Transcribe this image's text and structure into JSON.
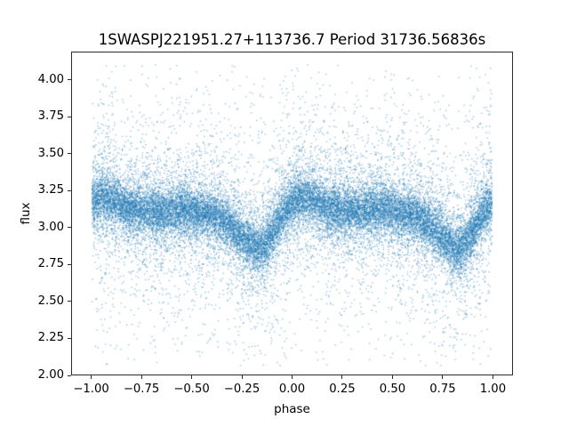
{
  "chart_data": {
    "type": "scatter",
    "title": "1SWASPJ221951.27+113736.7 Period 31736.56836s",
    "xlabel": "phase",
    "ylabel": "flux",
    "xlim": [
      -1.1,
      1.1
    ],
    "ylim": [
      2.0,
      4.19
    ],
    "xticks": [
      -1.0,
      -0.75,
      -0.5,
      -0.25,
      0.0,
      0.25,
      0.5,
      0.75,
      1.0
    ],
    "xtick_labels": [
      "−1.00",
      "−0.75",
      "−0.50",
      "−0.25",
      "0.00",
      "0.25",
      "0.50",
      "0.75",
      "1.00"
    ],
    "yticks": [
      2.0,
      2.25,
      2.5,
      2.75,
      3.0,
      3.25,
      3.5,
      3.75,
      4.0
    ],
    "ytick_labels": [
      "2.00",
      "2.25",
      "2.50",
      "2.75",
      "3.00",
      "3.25",
      "3.50",
      "3.75",
      "4.00"
    ],
    "grid": false,
    "legend": null,
    "background_color": "#ffffff",
    "marker_color": "#1f77b4",
    "marker_alpha": 0.45,
    "marker_size_px": 1.4,
    "n_points": 26000,
    "seed": 20517,
    "phase_range": [
      -1.0,
      1.0
    ],
    "flux_clip": [
      2.06,
      4.11
    ],
    "mean_curve": {
      "comment_visible_band": "band center flux vs folded phase (0..1), dips (eclipse) centered near folded phase 0.83 i.e. x = -0.17 and x = 0.83",
      "phase": [
        0.0,
        0.05,
        0.1,
        0.18,
        0.25,
        0.35,
        0.45,
        0.55,
        0.63,
        0.7,
        0.76,
        0.8,
        0.83,
        0.86,
        0.9,
        0.95,
        1.0
      ],
      "flux": [
        3.17,
        3.2,
        3.19,
        3.13,
        3.11,
        3.11,
        3.12,
        3.1,
        3.07,
        3.0,
        2.92,
        2.87,
        2.855,
        2.88,
        2.96,
        3.08,
        3.17
      ]
    },
    "noise_mixture": [
      {
        "weight": 0.56,
        "sigma": 0.075
      },
      {
        "weight": 0.24,
        "sigma": 0.17
      },
      {
        "weight": 0.13,
        "sigma": 0.34
      },
      {
        "weight": 0.07,
        "sigma": 0.62
      }
    ]
  }
}
